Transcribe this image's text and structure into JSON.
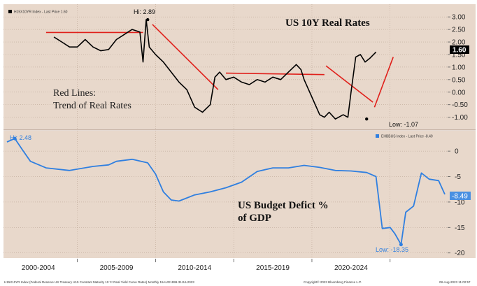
{
  "chart_data": [
    {
      "type": "line",
      "legend": "H15X10YR Index - Last Price 1.60",
      "title": "US 10Y Real Rates",
      "annotation_text": [
        "Red Lines:",
        "Trend of Real Rates"
      ],
      "hi_label": "Hi: 2.89",
      "low_label": "Low: -1.07",
      "last_label": "1.60",
      "yticks": [
        "3.00",
        "2.50",
        "2.00",
        "1.50",
        "1.00",
        "0.50",
        "0.00",
        "-0.50",
        "-1.00"
      ],
      "ylim": [
        -1.4,
        3.2
      ],
      "colors": {
        "line": "#000000",
        "trend": "#e0201b",
        "last_badge": "#000000"
      },
      "series": [
        {
          "x": [
            2003.0,
            2003.5,
            2004.0,
            2004.5,
            2005.0,
            2005.5,
            2006.0,
            2006.5,
            2007.0,
            2007.5,
            2008.0,
            2008.5,
            2008.7,
            2008.9,
            2009.1,
            2009.5,
            2010.0,
            2010.5,
            2011.0,
            2011.5,
            2012.0,
            2012.5,
            2013.0,
            2013.3,
            2013.6,
            2014.0,
            2014.5,
            2015.0,
            2015.5,
            2016.0,
            2016.5,
            2017.0,
            2017.5,
            2018.0,
            2018.5,
            2018.8,
            2019.0,
            2019.5,
            2020.0,
            2020.3,
            2020.6,
            2021.0,
            2021.5,
            2021.8,
            2022.0,
            2022.3,
            2022.6,
            2022.9,
            2023.2,
            2023.6
          ],
          "values": [
            2.2,
            2.0,
            1.8,
            1.8,
            2.1,
            1.8,
            1.65,
            1.7,
            2.1,
            2.3,
            2.5,
            2.4,
            1.2,
            2.89,
            1.8,
            1.5,
            1.2,
            0.8,
            0.4,
            0.1,
            -0.6,
            -0.8,
            -0.5,
            0.6,
            0.8,
            0.5,
            0.6,
            0.4,
            0.3,
            0.5,
            0.4,
            0.6,
            0.5,
            0.8,
            1.1,
            0.9,
            0.5,
            -0.2,
            -0.9,
            -1.0,
            -0.8,
            -1.07,
            -0.9,
            -1.0,
            0.0,
            1.4,
            1.5,
            1.2,
            1.35,
            1.6
          ]
        }
      ],
      "trend_lines": [
        {
          "x": [
            2002.5,
            2008.7
          ],
          "values": [
            2.38,
            2.38
          ]
        },
        {
          "x": [
            2009.3,
            2013.5
          ],
          "values": [
            2.7,
            0.1
          ]
        },
        {
          "x": [
            2014.0,
            2020.3
          ],
          "values": [
            0.76,
            0.7
          ]
        },
        {
          "x": [
            2020.4,
            2023.4
          ],
          "values": [
            1.05,
            -0.4
          ]
        },
        {
          "x": [
            2023.5,
            2024.7
          ],
          "values": [
            -0.6,
            1.4
          ]
        }
      ],
      "annotations": [
        {
          "label": "Hi: 2.89",
          "x": 2009.0,
          "y": 2.89
        },
        {
          "label": "Low: -1.07",
          "x": 2023.0,
          "y": -1.07
        }
      ]
    },
    {
      "type": "line",
      "legend": "EHBBUS Index - Last Price -8.49",
      "title": "US Budget Defict %",
      "title_line2": "of GDP",
      "hi_label": "Hi: 2.48",
      "low_label": "Low: -18.35",
      "last_label": "-8.49",
      "yticks": [
        "0",
        "-5",
        "-10",
        "-15",
        "-20"
      ],
      "ylim": [
        -21,
        4
      ],
      "colors": {
        "line": "#2f7fe0",
        "point": "#2f7fe0",
        "last_badge": "#4a90e2"
      },
      "series": [
        {
          "x": [
            2000.0,
            2000.5,
            2001.0,
            2001.5,
            2002.5,
            2004.0,
            2005.5,
            2006.5,
            2007.0,
            2008.0,
            2009.0,
            2009.5,
            2010.0,
            2010.5,
            2011.0,
            2011.5,
            2012.0,
            2013.0,
            2014.0,
            2015.0,
            2016.0,
            2017.0,
            2018.0,
            2019.0,
            2020.0,
            2021.0,
            2022.0,
            2023.0,
            2023.3,
            2023.6,
            2024.0,
            2024.5,
            2024.8,
            2025.2,
            2025.5,
            2026.0,
            2026.5,
            2027.0,
            2027.6,
            2028.0
          ],
          "values": [
            1.8,
            2.48,
            0.2,
            -2.0,
            -3.3,
            -3.8,
            -3.0,
            -2.7,
            -2.0,
            -1.6,
            -2.3,
            -4.5,
            -8.0,
            -9.6,
            -9.8,
            -9.2,
            -8.6,
            -8.0,
            -7.2,
            -6.1,
            -4.0,
            -3.3,
            -3.3,
            -2.8,
            -3.2,
            -3.8,
            -3.9,
            -4.2,
            -4.6,
            -5.0,
            -15.2,
            -15.0,
            -16.2,
            -18.35,
            -12.0,
            -10.8,
            -4.3,
            -5.5,
            -5.8,
            -8.49
          ]
        }
      ],
      "annotations": [
        {
          "label": "Hi: 2.48",
          "x": 2000.5,
          "y": 2.48
        },
        {
          "label": "Low: -18.35",
          "x": 2025.2,
          "y": -18.35
        }
      ]
    }
  ],
  "x_axis": {
    "labels": [
      "2000-2004",
      "2005-2009",
      "2010-2014",
      "2015-2019",
      "2020-2024"
    ]
  },
  "footer": {
    "left": "H15X10YR Index (Federal Reserve US Treasury H15 Constant Maturity 10 Yr Real Yield Curve Rates) Monthly 15AUG1999-31JUL2023",
    "center": "Copyright© 2023 Bloomberg Finance L.P.",
    "right": "08-Aug-2023 11:02:57"
  },
  "colors": {
    "panel_bg": "#e8d8cb",
    "divider": "#c8b3a4",
    "grid": "#b39d8c"
  }
}
